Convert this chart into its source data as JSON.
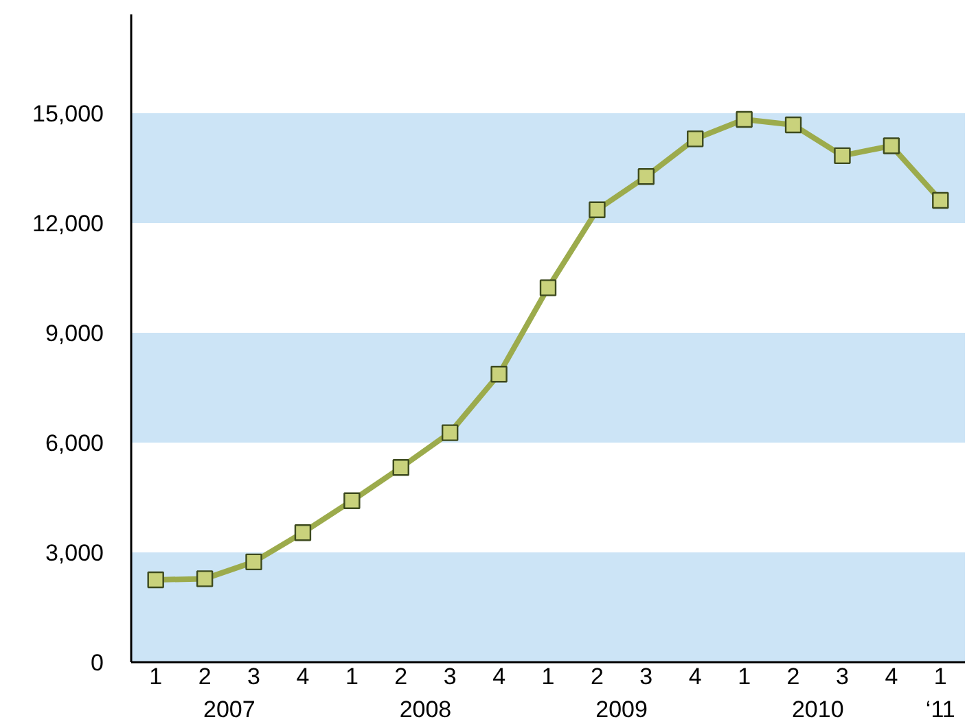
{
  "chart_data": {
    "type": "line",
    "categories": [
      "1",
      "2",
      "3",
      "4",
      "1",
      "2",
      "3",
      "4",
      "1",
      "2",
      "3",
      "4",
      "1",
      "2",
      "3",
      "4",
      "1"
    ],
    "series": [
      {
        "color": "#9cab4c",
        "values": [
          2250,
          2280,
          2740,
          3540,
          4410,
          5320,
          6270,
          7870,
          10230,
          12360,
          13270,
          14300,
          14830,
          14680,
          13840,
          14110,
          12620
        ]
      }
    ],
    "annotations": [
      "2007",
      "2008",
      "2009",
      "2010",
      "‘11"
    ],
    "ylim": [
      0,
      17700
    ],
    "yticks": [
      0,
      {
        "value": 3000,
        "label": "3,000"
      },
      {
        "value": 6000,
        "label": "6,000"
      },
      {
        "value": 9000,
        "label": "9,000"
      },
      {
        "value": 12000,
        "label": "12,000"
      },
      {
        "value": 15000,
        "label": "15,000"
      }
    ],
    "bands": [
      {
        "axis": "y",
        "from": 0,
        "to": 3000,
        "color": "#cce4f6"
      },
      {
        "axis": "y",
        "from": 6000,
        "to": 9000,
        "color": "#cce4f6"
      },
      {
        "axis": "y",
        "from": 12000,
        "to": 15000,
        "color": "#cce4f6"
      }
    ],
    "grid": false,
    "marker": "square",
    "line_style": "solid"
  }
}
